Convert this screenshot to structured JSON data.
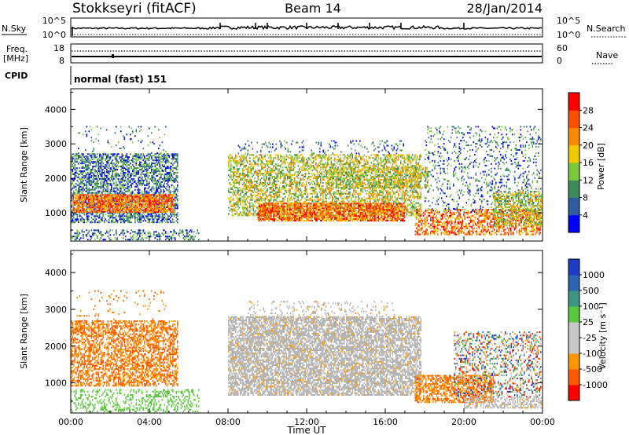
{
  "header": {
    "station": "Stokkseyri (fitACF)",
    "beam": "Beam 14",
    "date": "28/Jan/2014"
  },
  "nsky_panel": {
    "left_label": "N.Sky",
    "left_ticks": [
      "10^5",
      "10^0"
    ],
    "right_ticks": [
      "10^5",
      "10^0"
    ],
    "right_label": "N.Search"
  },
  "freq_panel": {
    "left_label_1": "Freq.",
    "left_label_2": "[MHz]",
    "left_ticks": [
      "18",
      "8"
    ],
    "right_ticks": [
      "60",
      "0"
    ],
    "right_label": "Nave"
  },
  "cpid_panel": {
    "left_label": "CPID",
    "mode_text": "normal (fast) 151"
  },
  "colors": {
    "power_scale": [
      "#0000ff",
      "#2d5aa0",
      "#3c8c5a",
      "#78c83c",
      "#f0c800",
      "#ff8c00",
      "#ff5000",
      "#ff0000"
    ],
    "velocity_scale": [
      "#ff0000",
      "#ff5a00",
      "#ff9600",
      "#c8c8c8",
      "#c8c8c8",
      "#5ac83c",
      "#3c9682",
      "#2d64b4",
      "#1e3cc8"
    ],
    "ground_scatter": "#b4b4b4"
  },
  "chart_data": [
    {
      "type": "heatmap",
      "title": "Power",
      "xlabel": "",
      "ylabel": "Slant Range [km]",
      "x_ticks": [
        "00:00",
        "04:00",
        "08:00",
        "12:00",
        "16:00",
        "20:00",
        "00:00"
      ],
      "y_ticks": [
        "1000",
        "2000",
        "3000",
        "4000"
      ],
      "ylim": [
        180,
        4600
      ],
      "colorbar": {
        "label": "Power [dB]",
        "ticks": [
          "4",
          "8",
          "12",
          "16",
          "20",
          "24",
          "28"
        ],
        "range": [
          0,
          32
        ]
      }
    },
    {
      "type": "heatmap",
      "title": "Velocity",
      "xlabel": "Time UT",
      "ylabel": "Slant Range [km]",
      "x_ticks": [
        "00:00",
        "04:00",
        "08:00",
        "12:00",
        "16:00",
        "20:00",
        "00:00"
      ],
      "y_ticks": [
        "1000",
        "2000",
        "3000",
        "4000"
      ],
      "ylim": [
        180,
        4600
      ],
      "colorbar": {
        "label": "Velocity [m s⁻¹]",
        "ticks": [
          "1000",
          "500",
          "100",
          "25",
          "-25",
          "-100",
          "-500",
          "-1000"
        ]
      }
    }
  ]
}
